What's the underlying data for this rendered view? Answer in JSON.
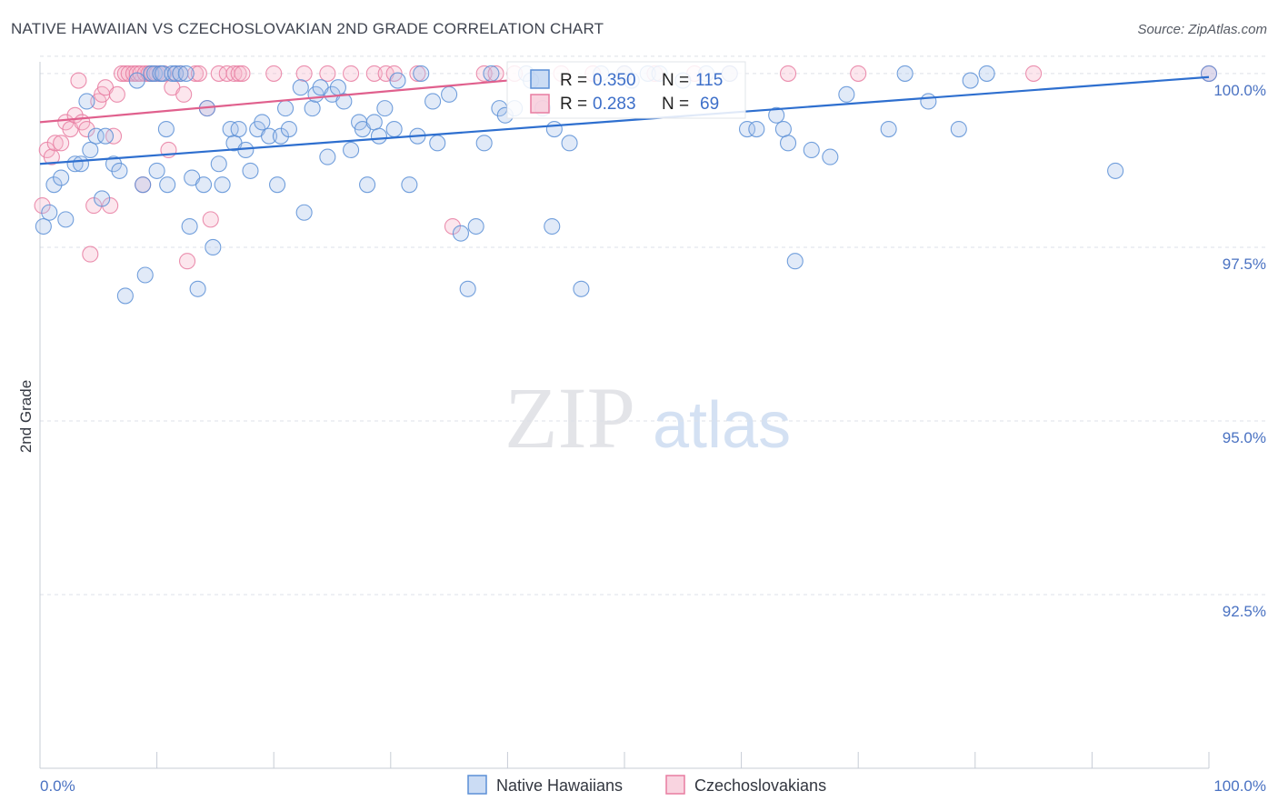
{
  "title": "NATIVE HAWAIIAN VS CZECHOSLOVAKIAN 2ND GRADE CORRELATION CHART",
  "source": "Source: ZipAtlas.com",
  "colors": {
    "blue": "#5b8fd6",
    "blue_fill": "#a9c4ec",
    "pink": "#e87da1",
    "pink_fill": "#f5b8cb",
    "blue_line": "#2e6fcf",
    "pink_line": "#e0608d",
    "grid": "#dde1e8",
    "tick_text": "#4a72c2"
  },
  "chart_data": {
    "type": "scatter",
    "title": "NATIVE HAWAIIAN VS CZECHOSLOVAKIAN 2ND GRADE CORRELATION CHART",
    "xlabel": "",
    "ylabel": "2nd Grade",
    "xlim": [
      0,
      100
    ],
    "ylim": [
      90.0,
      100.3
    ],
    "x_tick_labels": [
      "0.0%",
      "100.0%"
    ],
    "y_ticks": [
      100.0,
      97.5,
      95.0,
      92.5
    ],
    "y_tick_labels": [
      "100.0%",
      "97.5%",
      "95.0%",
      "92.5%"
    ],
    "watermark": {
      "zip": "ZIP",
      "atlas": "atlas"
    },
    "legend": {
      "r_label": "R =",
      "n_label": "N =",
      "entries": [
        {
          "name": "Native Hawaiians",
          "r": "0.350",
          "n": "115"
        },
        {
          "name": "Czechoslovakians",
          "r": "0.283",
          "n": "69"
        }
      ]
    },
    "series": [
      {
        "name": "Native Hawaiians",
        "trend": {
          "x": [
            0,
            100
          ],
          "y": [
            98.7,
            99.95
          ]
        },
        "points": [
          [
            0.3,
            97.8
          ],
          [
            0.8,
            98.0
          ],
          [
            1.2,
            98.4
          ],
          [
            1.8,
            98.5
          ],
          [
            2.2,
            97.9
          ],
          [
            3.0,
            98.7
          ],
          [
            3.5,
            98.7
          ],
          [
            4.0,
            99.6
          ],
          [
            4.3,
            98.9
          ],
          [
            4.8,
            99.1
          ],
          [
            5.3,
            98.2
          ],
          [
            5.6,
            99.1
          ],
          [
            6.3,
            98.7
          ],
          [
            6.8,
            98.6
          ],
          [
            7.3,
            96.8
          ],
          [
            8.3,
            99.9
          ],
          [
            8.8,
            98.4
          ],
          [
            9.0,
            97.1
          ],
          [
            9.5,
            100.0
          ],
          [
            9.8,
            100.0
          ],
          [
            10.0,
            98.6
          ],
          [
            10.3,
            100.0
          ],
          [
            10.5,
            100.0
          ],
          [
            10.8,
            99.2
          ],
          [
            10.9,
            98.4
          ],
          [
            11.3,
            100.0
          ],
          [
            11.6,
            100.0
          ],
          [
            12.0,
            100.0
          ],
          [
            12.5,
            100.0
          ],
          [
            12.8,
            97.8
          ],
          [
            13.0,
            98.5
          ],
          [
            13.5,
            96.9
          ],
          [
            14.0,
            98.4
          ],
          [
            14.3,
            99.5
          ],
          [
            14.8,
            97.5
          ],
          [
            15.3,
            98.7
          ],
          [
            15.6,
            98.4
          ],
          [
            16.3,
            99.2
          ],
          [
            16.6,
            99.0
          ],
          [
            17.0,
            99.2
          ],
          [
            17.6,
            98.9
          ],
          [
            18.0,
            98.6
          ],
          [
            18.6,
            99.2
          ],
          [
            19.0,
            99.3
          ],
          [
            19.6,
            99.1
          ],
          [
            20.3,
            98.4
          ],
          [
            20.6,
            99.1
          ],
          [
            21.0,
            99.5
          ],
          [
            21.3,
            99.2
          ],
          [
            22.3,
            99.8
          ],
          [
            22.6,
            98.0
          ],
          [
            23.3,
            99.5
          ],
          [
            23.6,
            99.7
          ],
          [
            24.0,
            99.8
          ],
          [
            24.6,
            98.8
          ],
          [
            25.0,
            99.7
          ],
          [
            25.5,
            99.8
          ],
          [
            26.0,
            99.6
          ],
          [
            26.6,
            98.9
          ],
          [
            27.3,
            99.3
          ],
          [
            27.6,
            99.2
          ],
          [
            28.0,
            98.4
          ],
          [
            28.6,
            99.3
          ],
          [
            29.0,
            99.1
          ],
          [
            29.5,
            99.5
          ],
          [
            30.3,
            99.2
          ],
          [
            30.6,
            99.9
          ],
          [
            31.6,
            98.4
          ],
          [
            32.3,
            99.1
          ],
          [
            32.6,
            100.0
          ],
          [
            33.6,
            99.6
          ],
          [
            34.0,
            99.0
          ],
          [
            35.0,
            99.7
          ],
          [
            36.0,
            97.7
          ],
          [
            36.6,
            96.9
          ],
          [
            37.3,
            97.8
          ],
          [
            38.0,
            99.0
          ],
          [
            38.6,
            100.0
          ],
          [
            39.3,
            99.5
          ],
          [
            39.8,
            99.4
          ],
          [
            40.6,
            99.5
          ],
          [
            41.6,
            100.0
          ],
          [
            42.0,
            99.9
          ],
          [
            43.0,
            99.5
          ],
          [
            43.8,
            97.8
          ],
          [
            44.0,
            99.2
          ],
          [
            45.3,
            99.0
          ],
          [
            46.3,
            96.9
          ],
          [
            48.0,
            100.0
          ],
          [
            50.0,
            100.0
          ],
          [
            50.6,
            99.9
          ],
          [
            52.0,
            100.0
          ],
          [
            53.0,
            100.0
          ],
          [
            55.0,
            99.9
          ],
          [
            57.0,
            100.0
          ],
          [
            59.0,
            100.0
          ],
          [
            60.5,
            99.2
          ],
          [
            61.3,
            99.2
          ],
          [
            63.0,
            99.4
          ],
          [
            63.6,
            99.2
          ],
          [
            64.0,
            99.0
          ],
          [
            64.6,
            97.3
          ],
          [
            66.0,
            98.9
          ],
          [
            67.6,
            98.8
          ],
          [
            69.0,
            99.7
          ],
          [
            72.6,
            99.2
          ],
          [
            74.0,
            100.0
          ],
          [
            76.0,
            99.6
          ],
          [
            78.6,
            99.2
          ],
          [
            79.6,
            99.9
          ],
          [
            81.0,
            100.0
          ],
          [
            92.0,
            98.6
          ],
          [
            100.0,
            100.0
          ]
        ]
      },
      {
        "name": "Czechoslovakians",
        "trend": {
          "x": [
            0,
            40
          ],
          "y": [
            99.3,
            99.9
          ]
        },
        "points": [
          [
            0.2,
            98.1
          ],
          [
            0.6,
            98.9
          ],
          [
            1.0,
            98.8
          ],
          [
            1.3,
            99.0
          ],
          [
            1.8,
            99.0
          ],
          [
            2.2,
            99.3
          ],
          [
            2.6,
            99.2
          ],
          [
            3.0,
            99.4
          ],
          [
            3.3,
            99.9
          ],
          [
            3.6,
            99.3
          ],
          [
            4.0,
            99.2
          ],
          [
            4.3,
            97.4
          ],
          [
            4.6,
            98.1
          ],
          [
            5.0,
            99.6
          ],
          [
            5.3,
            99.7
          ],
          [
            5.6,
            99.8
          ],
          [
            6.0,
            98.1
          ],
          [
            6.3,
            99.1
          ],
          [
            6.6,
            99.7
          ],
          [
            7.0,
            100.0
          ],
          [
            7.3,
            100.0
          ],
          [
            7.6,
            100.0
          ],
          [
            8.0,
            100.0
          ],
          [
            8.3,
            100.0
          ],
          [
            8.6,
            100.0
          ],
          [
            8.8,
            98.4
          ],
          [
            9.0,
            100.0
          ],
          [
            9.3,
            100.0
          ],
          [
            9.6,
            100.0
          ],
          [
            10.0,
            100.0
          ],
          [
            10.3,
            100.0
          ],
          [
            10.6,
            100.0
          ],
          [
            11.0,
            98.9
          ],
          [
            11.3,
            99.8
          ],
          [
            11.6,
            100.0
          ],
          [
            12.0,
            100.0
          ],
          [
            12.3,
            99.7
          ],
          [
            12.6,
            97.3
          ],
          [
            13.3,
            100.0
          ],
          [
            13.6,
            100.0
          ],
          [
            14.3,
            99.5
          ],
          [
            14.6,
            97.9
          ],
          [
            15.3,
            100.0
          ],
          [
            16.0,
            100.0
          ],
          [
            16.6,
            100.0
          ],
          [
            17.0,
            100.0
          ],
          [
            17.3,
            100.0
          ],
          [
            20.0,
            100.0
          ],
          [
            22.6,
            100.0
          ],
          [
            24.6,
            100.0
          ],
          [
            26.6,
            100.0
          ],
          [
            28.6,
            100.0
          ],
          [
            29.6,
            100.0
          ],
          [
            30.3,
            100.0
          ],
          [
            32.3,
            100.0
          ],
          [
            35.3,
            97.8
          ],
          [
            38.0,
            100.0
          ],
          [
            39.0,
            100.0
          ],
          [
            40.6,
            100.0
          ],
          [
            44.6,
            100.0
          ],
          [
            47.3,
            100.0
          ],
          [
            50.0,
            100.0
          ],
          [
            52.6,
            100.0
          ],
          [
            56.0,
            100.0
          ],
          [
            59.0,
            100.0
          ],
          [
            64.0,
            100.0
          ],
          [
            70.0,
            100.0
          ],
          [
            85.0,
            100.0
          ],
          [
            100.0,
            100.0
          ]
        ]
      }
    ]
  }
}
